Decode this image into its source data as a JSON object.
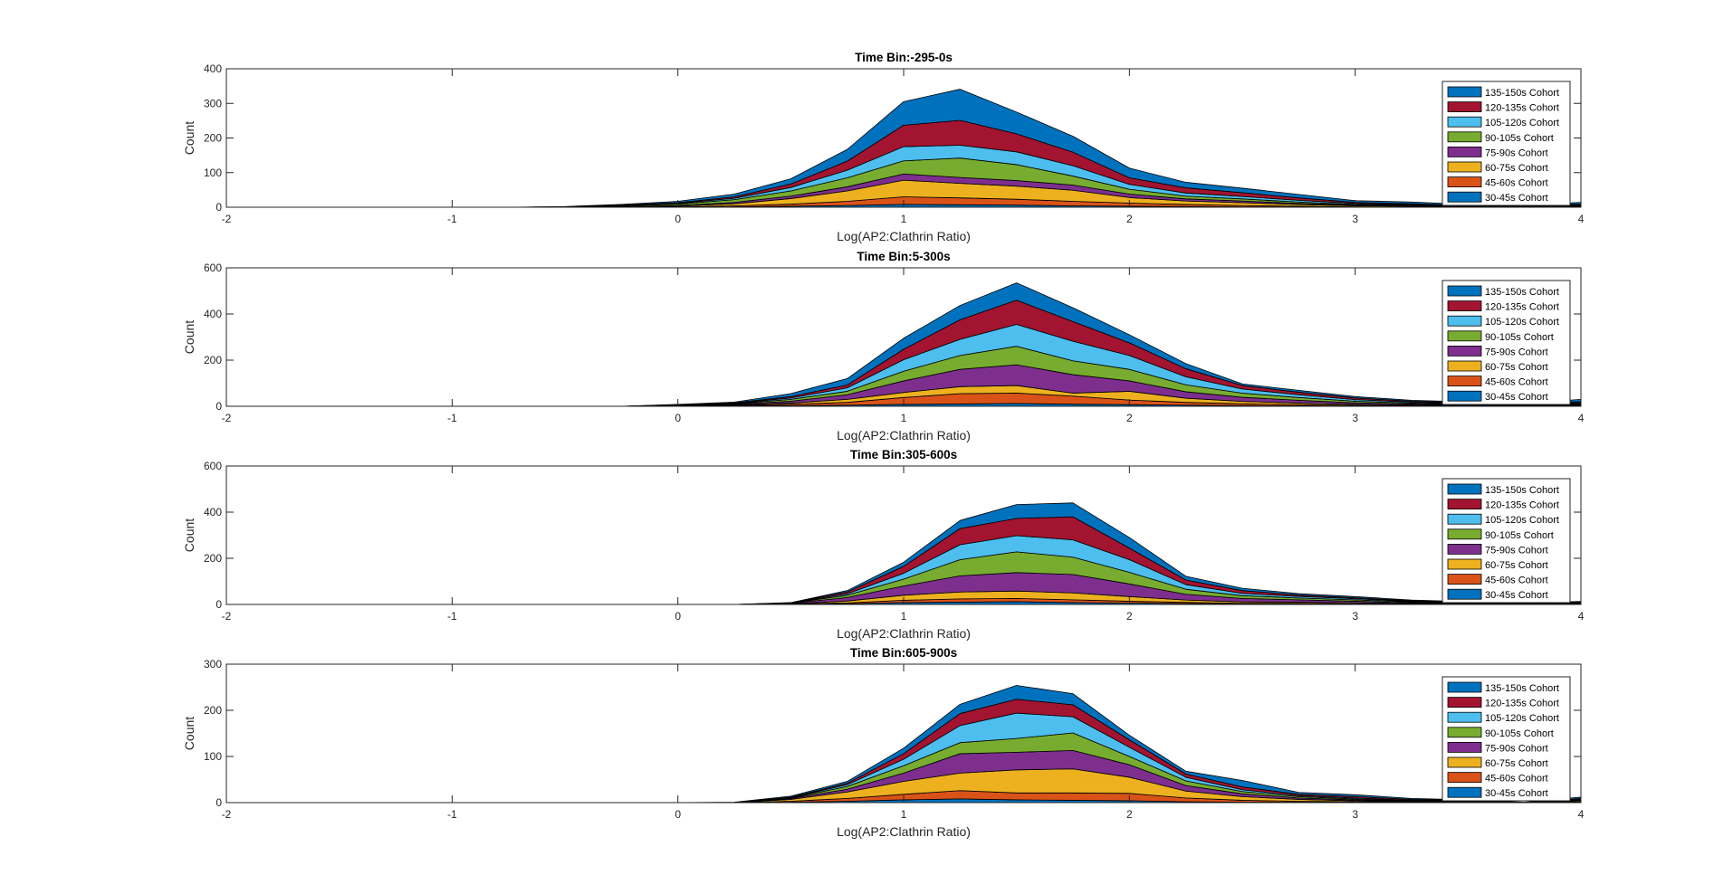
{
  "chart_data": [
    {
      "type": "area",
      "title": "Time Bin:-295-0s",
      "xlabel": "Log(AP2:Clathrin Ratio)",
      "ylabel": "Count",
      "xlim": [
        -2,
        4
      ],
      "ylim": [
        0,
        400
      ],
      "xticks": [
        -2,
        -1,
        0,
        1,
        2,
        3,
        4
      ],
      "yticks": [
        0,
        100,
        200,
        300,
        400
      ],
      "legend_position": "top-right",
      "x": [
        -2,
        -1.75,
        -1.5,
        -1.25,
        -1,
        -0.75,
        -0.5,
        -0.25,
        0,
        0.25,
        0.5,
        0.75,
        1,
        1.25,
        1.5,
        1.75,
        2,
        2.25,
        2.5,
        2.75,
        3,
        3.25,
        3.5,
        3.75,
        4
      ],
      "series": [
        {
          "name": "30-45s Cohort",
          "color": "#0072BD",
          "values": [
            0,
            0,
            0,
            0,
            0,
            0,
            0,
            0,
            0,
            1,
            3,
            5,
            8,
            7,
            6,
            4,
            3,
            2,
            1,
            1,
            0,
            0,
            0,
            0,
            1
          ]
        },
        {
          "name": "45-60s Cohort",
          "color": "#D95319",
          "values": [
            0,
            0,
            0,
            0,
            0,
            0,
            0,
            0,
            1,
            3,
            6,
            12,
            22,
            20,
            17,
            13,
            9,
            6,
            4,
            2,
            1,
            1,
            0,
            0,
            2
          ]
        },
        {
          "name": "60-75s Cohort",
          "color": "#EDB120",
          "values": [
            0,
            0,
            0,
            0,
            0,
            0,
            0,
            1,
            2,
            6,
            16,
            30,
            48,
            42,
            38,
            32,
            16,
            10,
            8,
            5,
            3,
            2,
            1,
            1,
            1
          ]
        },
        {
          "name": "75-90s Cohort",
          "color": "#7E2F8E",
          "values": [
            0,
            0,
            0,
            0,
            0,
            0,
            0,
            1,
            2,
            4,
            7,
            12,
            18,
            17,
            16,
            15,
            10,
            6,
            5,
            3,
            2,
            1,
            1,
            1,
            1
          ]
        },
        {
          "name": "90-105s Cohort",
          "color": "#77AC30",
          "values": [
            0,
            0,
            0,
            0,
            0,
            0,
            1,
            2,
            4,
            8,
            15,
            26,
            38,
            56,
            46,
            26,
            14,
            8,
            6,
            4,
            2,
            2,
            1,
            1,
            1
          ]
        },
        {
          "name": "105-120s Cohort",
          "color": "#4DBEEE",
          "values": [
            0,
            0,
            0,
            0,
            0,
            0,
            0,
            1,
            2,
            4,
            10,
            22,
            41,
            37,
            37,
            30,
            14,
            9,
            7,
            5,
            3,
            2,
            1,
            1,
            1
          ]
        },
        {
          "name": "120-135s Cohort",
          "color": "#A2142F",
          "values": [
            0,
            0,
            0,
            0,
            0,
            0,
            0,
            1,
            2,
            4,
            10,
            26,
            62,
            72,
            52,
            39,
            19,
            15,
            11,
            7,
            3,
            2,
            1,
            1,
            2
          ]
        },
        {
          "name": "135-150s Cohort",
          "color": "#0072BD",
          "values": [
            0,
            0,
            0,
            0,
            0,
            0,
            1,
            2,
            4,
            8,
            15,
            34,
            68,
            90,
            63,
            46,
            28,
            16,
            13,
            10,
            5,
            5,
            3,
            1,
            5
          ]
        }
      ]
    },
    {
      "type": "area",
      "title": "Time Bin:5-300s",
      "xlabel": "Log(AP2:Clathrin Ratio)",
      "ylabel": "Count",
      "xlim": [
        -2,
        4
      ],
      "ylim": [
        0,
        600
      ],
      "xticks": [
        -2,
        -1,
        0,
        1,
        2,
        3,
        4
      ],
      "yticks": [
        0,
        200,
        400,
        600
      ],
      "legend_position": "top-right",
      "x": [
        -2,
        -1.75,
        -1.5,
        -1.25,
        -1,
        -0.75,
        -0.5,
        -0.25,
        0,
        0.25,
        0.5,
        0.75,
        1,
        1.25,
        1.5,
        1.75,
        2,
        2.25,
        2.5,
        2.75,
        3,
        3.25,
        3.5,
        3.75,
        4
      ],
      "series": [
        {
          "name": "30-45s Cohort",
          "color": "#0072BD",
          "values": [
            0,
            0,
            0,
            0,
            0,
            0,
            0,
            0,
            1,
            2,
            3,
            5,
            8,
            10,
            12,
            9,
            7,
            5,
            3,
            2,
            1,
            1,
            1,
            1,
            2
          ]
        },
        {
          "name": "45-60s Cohort",
          "color": "#D95319",
          "values": [
            0,
            0,
            0,
            0,
            0,
            0,
            0,
            0,
            1,
            2,
            6,
            12,
            30,
            45,
            45,
            35,
            20,
            12,
            8,
            5,
            3,
            2,
            1,
            1,
            2
          ]
        },
        {
          "name": "60-75s Cohort",
          "color": "#EDB120",
          "values": [
            0,
            0,
            0,
            0,
            0,
            0,
            0,
            0,
            1,
            2,
            5,
            13,
            22,
            30,
            33,
            13,
            38,
            18,
            10,
            7,
            4,
            3,
            2,
            1,
            2
          ]
        },
        {
          "name": "75-90s Cohort",
          "color": "#7E2F8E",
          "values": [
            0,
            0,
            0,
            0,
            0,
            0,
            0,
            0,
            1,
            3,
            8,
            20,
            50,
            75,
            90,
            80,
            45,
            28,
            18,
            12,
            7,
            4,
            3,
            2,
            3
          ]
        },
        {
          "name": "90-105s Cohort",
          "color": "#77AC30",
          "values": [
            0,
            0,
            0,
            0,
            0,
            0,
            0,
            0,
            1,
            2,
            8,
            15,
            42,
            60,
            80,
            60,
            50,
            30,
            18,
            12,
            7,
            4,
            3,
            2,
            3
          ]
        },
        {
          "name": "105-120s Cohort",
          "color": "#4DBEEE",
          "values": [
            0,
            0,
            0,
            0,
            0,
            0,
            0,
            0,
            1,
            2,
            6,
            15,
            50,
            70,
            95,
            85,
            60,
            35,
            18,
            12,
            7,
            4,
            3,
            2,
            4
          ]
        },
        {
          "name": "120-135s Cohort",
          "color": "#A2142F",
          "values": [
            0,
            0,
            0,
            0,
            0,
            0,
            0,
            0,
            1,
            2,
            6,
            12,
            45,
            85,
            105,
            85,
            55,
            35,
            15,
            11,
            7,
            4,
            3,
            2,
            4
          ]
        },
        {
          "name": "135-150s Cohort",
          "color": "#0072BD",
          "values": [
            0,
            0,
            0,
            0,
            0,
            0,
            0,
            0,
            1,
            3,
            13,
            28,
            48,
            62,
            75,
            60,
            35,
            22,
            7,
            8,
            6,
            4,
            3,
            2,
            10
          ]
        }
      ]
    },
    {
      "type": "area",
      "title": "Time Bin:305-600s",
      "xlabel": "Log(AP2:Clathrin Ratio)",
      "ylabel": "Count",
      "xlim": [
        -2,
        4
      ],
      "ylim": [
        0,
        600
      ],
      "xticks": [
        -2,
        -1,
        0,
        1,
        2,
        3,
        4
      ],
      "yticks": [
        0,
        200,
        400,
        600
      ],
      "legend_position": "top-right",
      "x": [
        -2,
        -1.75,
        -1.5,
        -1.25,
        -1,
        -0.75,
        -0.5,
        -0.25,
        0,
        0.25,
        0.5,
        0.75,
        1,
        1.25,
        1.5,
        1.75,
        2,
        2.25,
        2.5,
        2.75,
        3,
        3.25,
        3.5,
        3.75,
        4
      ],
      "series": [
        {
          "name": "30-45s Cohort",
          "color": "#0072BD",
          "values": [
            0,
            0,
            0,
            0,
            0,
            0,
            0,
            0,
            0,
            0,
            1,
            3,
            8,
            10,
            12,
            8,
            6,
            4,
            2,
            2,
            1,
            1,
            0,
            0,
            1
          ]
        },
        {
          "name": "45-60s Cohort",
          "color": "#D95319",
          "values": [
            0,
            0,
            0,
            0,
            0,
            0,
            0,
            0,
            0,
            0,
            1,
            4,
            10,
            14,
            14,
            12,
            8,
            5,
            3,
            3,
            2,
            1,
            1,
            0,
            1
          ]
        },
        {
          "name": "60-75s Cohort",
          "color": "#EDB120",
          "values": [
            0,
            0,
            0,
            0,
            0,
            0,
            0,
            0,
            0,
            0,
            1,
            8,
            22,
            30,
            32,
            30,
            20,
            10,
            6,
            5,
            4,
            2,
            1,
            1,
            1
          ]
        },
        {
          "name": "75-90s Cohort",
          "color": "#7E2F8E",
          "values": [
            0,
            0,
            0,
            0,
            0,
            0,
            0,
            0,
            0,
            0,
            2,
            15,
            40,
            70,
            80,
            80,
            55,
            25,
            15,
            10,
            7,
            3,
            2,
            1,
            2
          ]
        },
        {
          "name": "90-105s Cohort",
          "color": "#77AC30",
          "values": [
            0,
            0,
            0,
            0,
            0,
            0,
            0,
            0,
            0,
            0,
            1,
            10,
            30,
            70,
            90,
            75,
            50,
            22,
            12,
            8,
            6,
            3,
            2,
            1,
            2
          ]
        },
        {
          "name": "105-120s Cohort",
          "color": "#4DBEEE",
          "values": [
            0,
            0,
            0,
            0,
            0,
            0,
            0,
            0,
            0,
            0,
            1,
            6,
            25,
            65,
            70,
            75,
            55,
            20,
            10,
            7,
            5,
            3,
            2,
            1,
            2
          ]
        },
        {
          "name": "120-135s Cohort",
          "color": "#A2142F",
          "values": [
            0,
            0,
            0,
            0,
            0,
            0,
            0,
            0,
            0,
            0,
            0,
            8,
            30,
            70,
            75,
            100,
            50,
            20,
            12,
            6,
            4,
            3,
            2,
            1,
            2
          ]
        },
        {
          "name": "135-150s Cohort",
          "color": "#0072BD",
          "values": [
            0,
            0,
            0,
            0,
            0,
            0,
            0,
            0,
            0,
            0,
            1,
            6,
            18,
            35,
            60,
            60,
            46,
            16,
            10,
            6,
            5,
            3,
            2,
            1,
            2
          ]
        }
      ]
    },
    {
      "type": "area",
      "title": "Time Bin:605-900s",
      "xlabel": "Log(AP2:Clathrin Ratio)",
      "ylabel": "Count",
      "xlim": [
        -2,
        4
      ],
      "ylim": [
        0,
        300
      ],
      "xticks": [
        -2,
        -1,
        0,
        1,
        2,
        3,
        4
      ],
      "yticks": [
        0,
        100,
        200,
        300
      ],
      "legend_position": "top-right",
      "x": [
        -2,
        -1.75,
        -1.5,
        -1.25,
        -1,
        -0.75,
        -0.5,
        -0.25,
        0,
        0.25,
        0.5,
        0.75,
        1,
        1.25,
        1.5,
        1.75,
        2,
        2.25,
        2.5,
        2.75,
        3,
        3.25,
        3.5,
        3.75,
        4
      ],
      "series": [
        {
          "name": "30-45s Cohort",
          "color": "#0072BD",
          "values": [
            0,
            0,
            0,
            0,
            0,
            0,
            0,
            0,
            0,
            0,
            1,
            3,
            6,
            8,
            6,
            5,
            4,
            2,
            1,
            1,
            1,
            0,
            0,
            0,
            1
          ]
        },
        {
          "name": "45-60s Cohort",
          "color": "#D95319",
          "values": [
            0,
            0,
            0,
            0,
            0,
            0,
            0,
            0,
            0,
            0,
            2,
            6,
            12,
            18,
            15,
            16,
            16,
            8,
            4,
            2,
            1,
            1,
            0,
            0,
            1
          ]
        },
        {
          "name": "60-75s Cohort",
          "color": "#EDB120",
          "values": [
            0,
            0,
            0,
            0,
            0,
            0,
            0,
            0,
            0,
            0,
            4,
            14,
            28,
            38,
            50,
            52,
            35,
            15,
            8,
            4,
            2,
            1,
            1,
            0,
            2
          ]
        },
        {
          "name": "75-90s Cohort",
          "color": "#7E2F8E",
          "values": [
            0,
            0,
            0,
            0,
            0,
            0,
            0,
            0,
            0,
            0,
            2,
            6,
            18,
            42,
            38,
            40,
            27,
            12,
            6,
            3,
            2,
            1,
            1,
            0,
            1
          ]
        },
        {
          "name": "90-105s Cohort",
          "color": "#77AC30",
          "values": [
            0,
            0,
            0,
            0,
            0,
            0,
            0,
            0,
            0,
            0,
            1,
            6,
            16,
            24,
            30,
            38,
            18,
            10,
            5,
            3,
            2,
            1,
            1,
            0,
            1
          ]
        },
        {
          "name": "105-120s Cohort",
          "color": "#4DBEEE",
          "values": [
            0,
            0,
            0,
            0,
            0,
            0,
            0,
            0,
            0,
            0,
            1,
            4,
            14,
            37,
            55,
            35,
            20,
            8,
            4,
            2,
            2,
            1,
            1,
            0,
            1
          ]
        },
        {
          "name": "120-135s Cohort",
          "color": "#A2142F",
          "values": [
            0,
            0,
            0,
            0,
            0,
            0,
            0,
            0,
            0,
            0,
            1,
            3,
            12,
            26,
            30,
            26,
            16,
            7,
            6,
            3,
            3,
            2,
            1,
            0,
            2
          ]
        },
        {
          "name": "135-150s Cohort",
          "color": "#0072BD",
          "values": [
            0,
            0,
            0,
            0,
            0,
            0,
            0,
            0,
            0,
            1,
            2,
            4,
            12,
            20,
            30,
            24,
            10,
            6,
            14,
            4,
            4,
            2,
            1,
            1,
            3
          ]
        }
      ]
    }
  ]
}
